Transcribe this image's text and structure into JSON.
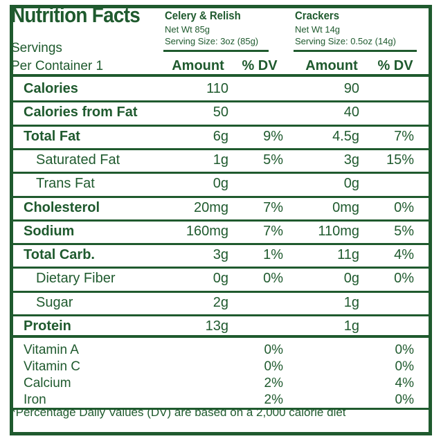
{
  "title": "Nutrition Facts",
  "servings": {
    "line1": "Servings",
    "line2": "Per Container 1"
  },
  "products": [
    {
      "name": "Celery & Relish",
      "net_wt": "Net Wt 85g",
      "serving_size": "Serving Size: 3oz (85g)"
    },
    {
      "name": "Crackers",
      "net_wt": "Net Wt 14g",
      "serving_size": "Serving Size: 0.5oz (14g)"
    }
  ],
  "headers": {
    "amount": "Amount",
    "dv": "% DV"
  },
  "rows": [
    {
      "name": "Calories",
      "bold": true,
      "indent": false,
      "p1_amount": "110",
      "p1_dv": "",
      "p2_amount": "90",
      "p2_dv": ""
    },
    {
      "name": "Calories from Fat",
      "bold": true,
      "indent": false,
      "p1_amount": "50",
      "p1_dv": "",
      "p2_amount": "40",
      "p2_dv": ""
    },
    {
      "name": "Total Fat",
      "bold": true,
      "indent": false,
      "p1_amount": "6g",
      "p1_dv": "9%",
      "p2_amount": "4.5g",
      "p2_dv": "7%"
    },
    {
      "name": "Saturated Fat",
      "bold": false,
      "indent": true,
      "p1_amount": "1g",
      "p1_dv": "5%",
      "p2_amount": "3g",
      "p2_dv": "15%"
    },
    {
      "name": "Trans Fat",
      "bold": false,
      "indent": true,
      "p1_amount": "0g",
      "p1_dv": "",
      "p2_amount": "0g",
      "p2_dv": ""
    },
    {
      "name": "Cholesterol",
      "bold": true,
      "indent": false,
      "p1_amount": "20mg",
      "p1_dv": "7%",
      "p2_amount": "0mg",
      "p2_dv": "0%"
    },
    {
      "name": "Sodium",
      "bold": true,
      "indent": false,
      "p1_amount": "160mg",
      "p1_dv": "7%",
      "p2_amount": "110mg",
      "p2_dv": "5%"
    },
    {
      "name": "Total Carb.",
      "bold": true,
      "indent": false,
      "p1_amount": "3g",
      "p1_dv": "1%",
      "p2_amount": "11g",
      "p2_dv": "4%"
    },
    {
      "name": "Dietary Fiber",
      "bold": false,
      "indent": true,
      "p1_amount": "0g",
      "p1_dv": "0%",
      "p2_amount": "0g",
      "p2_dv": "0%"
    },
    {
      "name": "Sugar",
      "bold": false,
      "indent": true,
      "p1_amount": "2g",
      "p1_dv": "",
      "p2_amount": "1g",
      "p2_dv": ""
    },
    {
      "name": "Protein",
      "bold": true,
      "indent": false,
      "p1_amount": "13g",
      "p1_dv": "",
      "p2_amount": "1g",
      "p2_dv": ""
    }
  ],
  "vitamins": [
    {
      "name": "Vitamin A",
      "p1_dv": "0%",
      "p2_dv": "0%"
    },
    {
      "name": "Vitamin C",
      "p1_dv": "0%",
      "p2_dv": "0%"
    },
    {
      "name": "Calcium",
      "p1_dv": "2%",
      "p2_dv": "4%"
    },
    {
      "name": "Iron",
      "p1_dv": "2%",
      "p2_dv": "0%"
    }
  ],
  "footnote": "*Percentage Daily Values (DV) are based on a 2,000 calorie diet",
  "colors": {
    "ink": "#1f5a2e",
    "background": "#ffffff"
  }
}
